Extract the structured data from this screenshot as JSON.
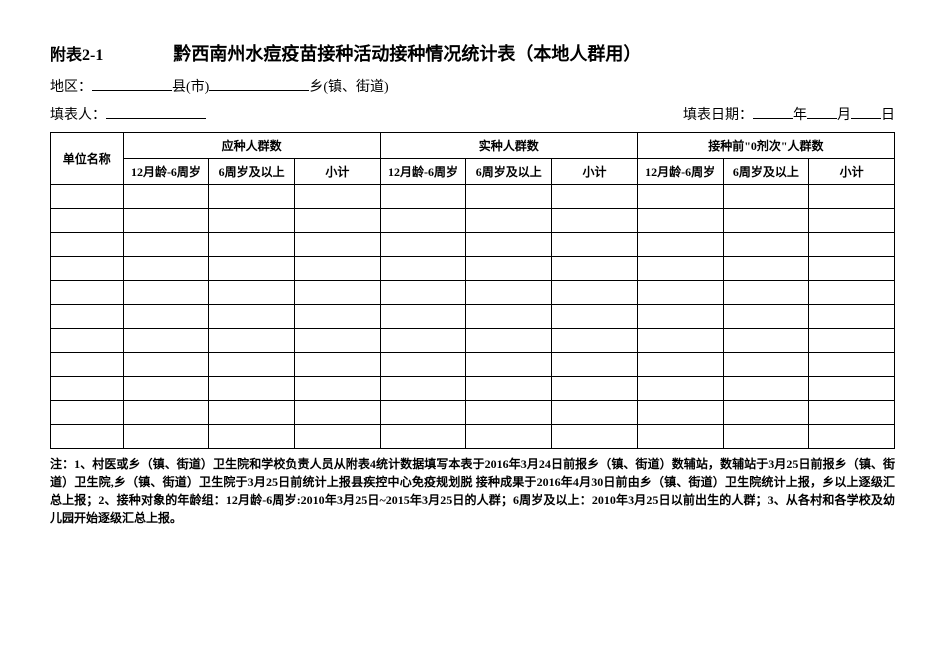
{
  "header": {
    "attachment_label": "附表2-1",
    "title": "黔西南州水痘疫苗接种活动接种情况统计表（本地人群用）"
  },
  "region": {
    "prefix": "地区：",
    "county_suffix": "县(市)",
    "town_suffix": "乡(镇、街道)"
  },
  "filler": {
    "prefix": "填表人：",
    "date_prefix": "填表日期：",
    "year": "年",
    "month": "月",
    "day": "日"
  },
  "table": {
    "row_header": "单位名称",
    "groups": [
      "应种人群数",
      "实种人群数",
      "接种前\"0剂次\"人群数"
    ],
    "subcols": [
      "12月龄-6周岁",
      "6周岁及以上",
      "小计"
    ],
    "num_data_rows": 11
  },
  "notes": {
    "text": "注：1、村医或乡（镇、街道）卫生院和学校负责人员从附表4统计数据填写本表于2016年3月24日前报乡（镇、街道）数辅站，数辅站于3月25日前报乡（镇、街道）卫生院,乡（镇、街道）卫生院于3月25日前统计上报县疾控中心免疫规划脱 接种成果于2016年4月30日前由乡（镇、街道）卫生院统计上报，乡以上逐级汇总上报；2、接种对象的年龄组：12月龄-6周岁:2010年3月25日~2015年3月25日的人群；6周岁及以上：2010年3月25日以前出生的人群；3、从各村和各学校及幼儿园开始逐级汇总上报。"
  }
}
